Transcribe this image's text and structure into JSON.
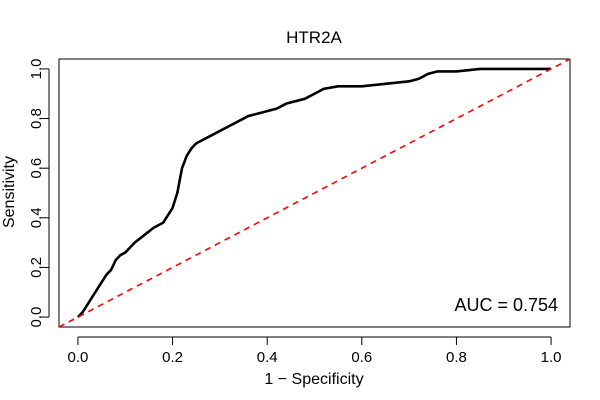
{
  "chart_data": {
    "type": "line",
    "title": "HTR2A",
    "xlabel": "1 − Specificity",
    "ylabel": "Sensitivity",
    "xlim": [
      -0.04,
      1.04
    ],
    "ylim": [
      -0.04,
      1.04
    ],
    "x_ticks": [
      0.0,
      0.2,
      0.4,
      0.6,
      0.8,
      1.0
    ],
    "y_ticks": [
      0.0,
      0.2,
      0.4,
      0.6,
      0.8,
      1.0
    ],
    "x_tick_labels": [
      "0.0",
      "0.2",
      "0.4",
      "0.6",
      "0.8",
      "1.0"
    ],
    "y_tick_labels": [
      "0.0",
      "0.2",
      "0.4",
      "0.6",
      "0.8",
      "1.0"
    ],
    "grid": false,
    "annotation": "AUC = 0.754",
    "annotation_position": "bottom-right",
    "series": [
      {
        "color": "#000000",
        "style": "solid",
        "x": [
          0.0,
          0.01,
          0.02,
          0.03,
          0.04,
          0.05,
          0.06,
          0.07,
          0.08,
          0.09,
          0.1,
          0.12,
          0.14,
          0.16,
          0.18,
          0.2,
          0.21,
          0.22,
          0.23,
          0.24,
          0.25,
          0.26,
          0.28,
          0.3,
          0.32,
          0.34,
          0.36,
          0.38,
          0.4,
          0.42,
          0.44,
          0.46,
          0.48,
          0.5,
          0.52,
          0.55,
          0.6,
          0.65,
          0.7,
          0.72,
          0.74,
          0.76,
          0.8,
          0.85,
          0.9,
          0.95,
          1.0
        ],
        "y": [
          0.0,
          0.02,
          0.05,
          0.08,
          0.11,
          0.14,
          0.17,
          0.19,
          0.23,
          0.25,
          0.26,
          0.3,
          0.33,
          0.36,
          0.38,
          0.44,
          0.5,
          0.6,
          0.65,
          0.68,
          0.7,
          0.71,
          0.73,
          0.75,
          0.77,
          0.79,
          0.81,
          0.82,
          0.83,
          0.84,
          0.86,
          0.87,
          0.88,
          0.9,
          0.92,
          0.93,
          0.93,
          0.94,
          0.95,
          0.96,
          0.98,
          0.99,
          0.99,
          1.0,
          1.0,
          1.0,
          1.0
        ]
      },
      {
        "color": "#ff0000",
        "style": "dashed",
        "x": [
          -0.04,
          1.04
        ],
        "y": [
          -0.04,
          1.04
        ]
      }
    ]
  }
}
